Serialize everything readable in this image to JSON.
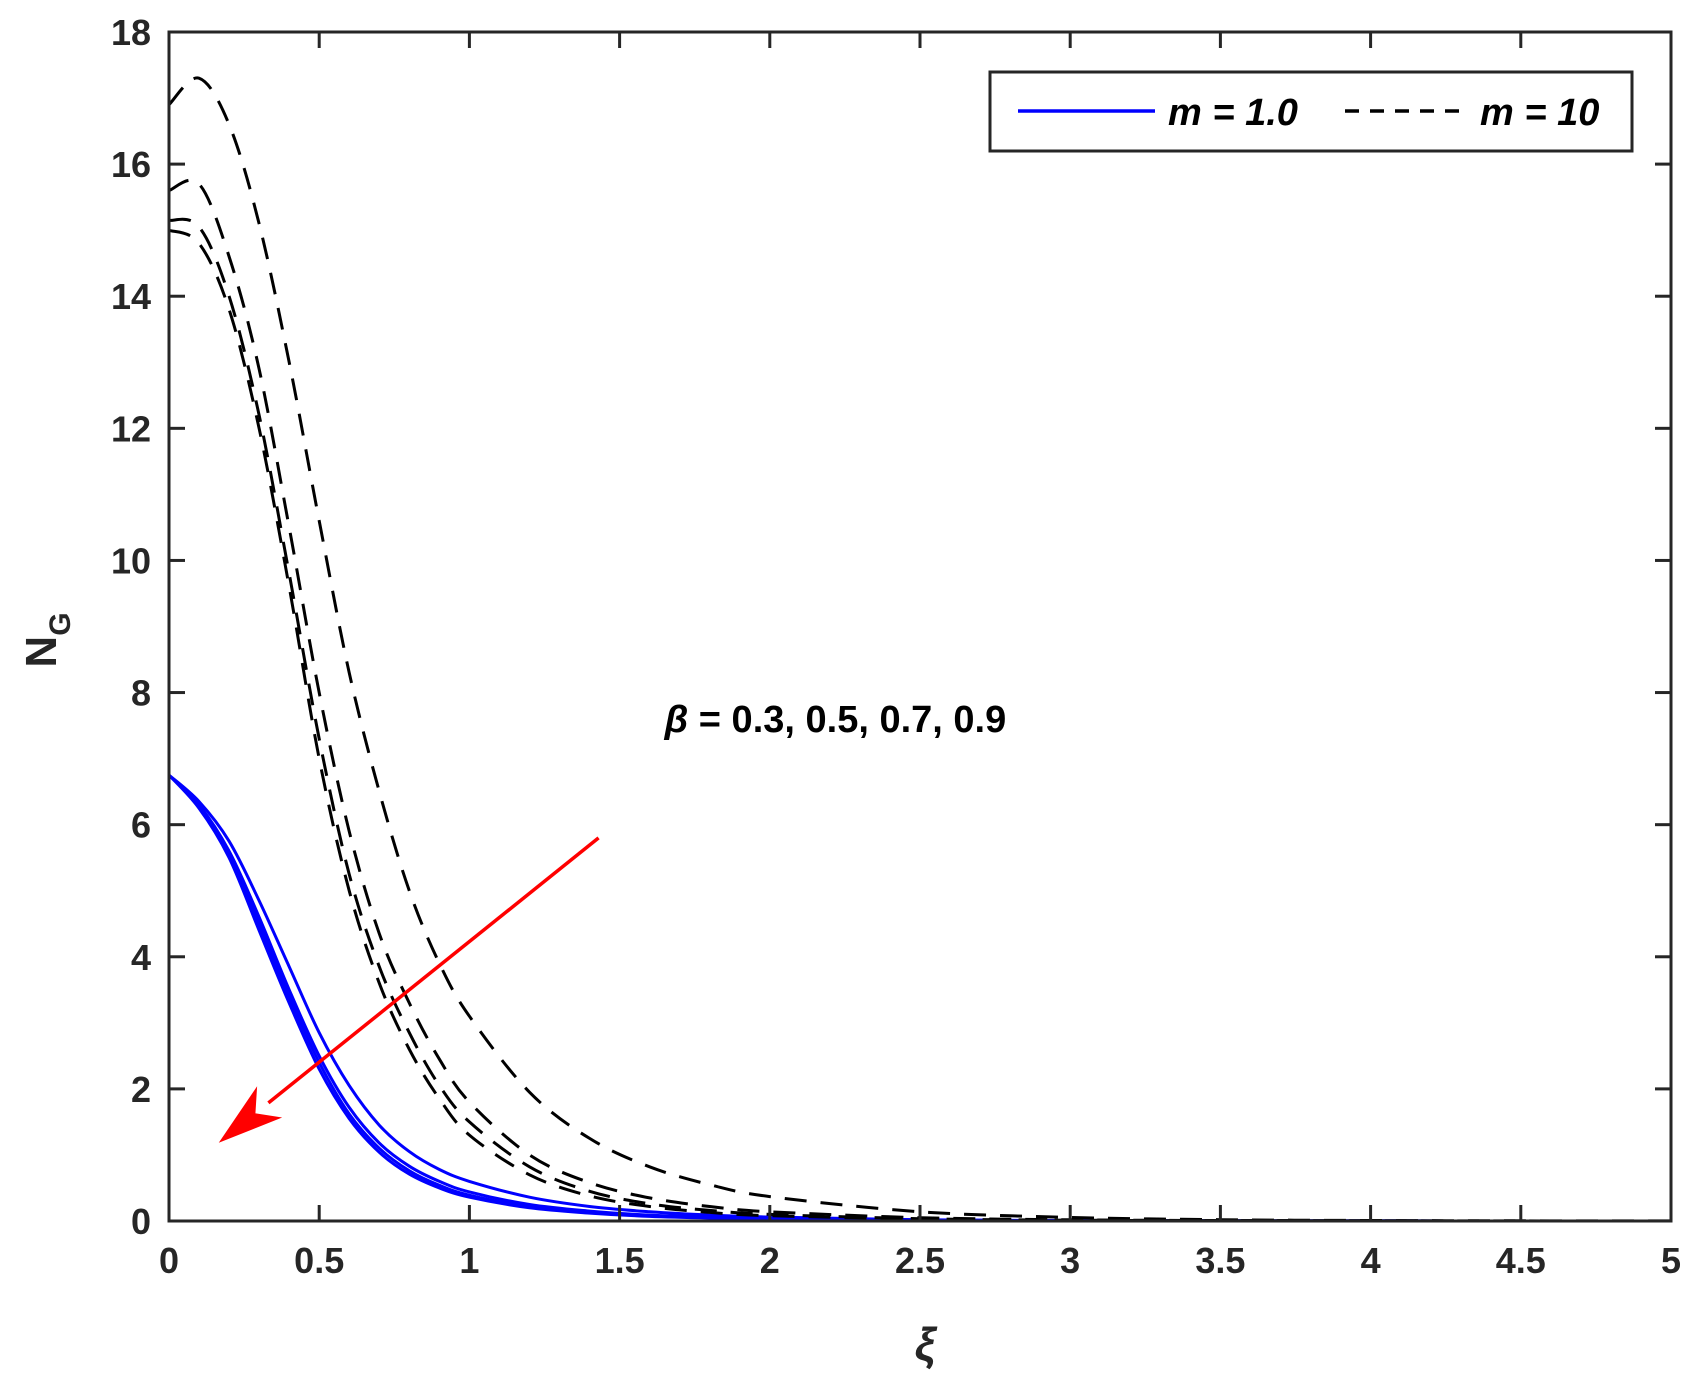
{
  "chart_data": {
    "type": "line",
    "xlabel": "ξ",
    "ylabel": {
      "main": "N",
      "sub": "G"
    },
    "xlim": [
      0,
      5
    ],
    "ylim": [
      0,
      18
    ],
    "xticks": [
      0,
      0.5,
      1,
      1.5,
      2,
      2.5,
      3,
      3.5,
      4,
      4.5,
      5
    ],
    "xtick_labels": [
      "0",
      "0.5",
      "1",
      "1.5",
      "2",
      "2.5",
      "3",
      "3.5",
      "4",
      "4.5",
      "5"
    ],
    "yticks": [
      0,
      2,
      4,
      6,
      8,
      10,
      12,
      14,
      16,
      18
    ],
    "ytick_labels": [
      "0",
      "2",
      "4",
      "6",
      "8",
      "10",
      "12",
      "14",
      "16",
      "18"
    ],
    "grid": false,
    "legend": {
      "placement": "top-right",
      "entries": [
        {
          "label": "m = 1.0",
          "style": "solid",
          "color": "#0000ff"
        },
        {
          "label": "m = 10",
          "style": "dashed",
          "color": "#000000"
        }
      ]
    },
    "annotation": {
      "symbol": "β",
      "text": " = 0.3, 0.5, 0.7, 0.9",
      "x": 1.65,
      "y": 7.4
    },
    "arrow": {
      "from": [
        1.43,
        5.8
      ],
      "to": [
        0.17,
        1.2
      ],
      "color": "#ff0000"
    },
    "x": [
      0,
      0.1,
      0.2,
      0.3,
      0.4,
      0.5,
      0.6,
      0.7,
      0.8,
      0.9,
      1.0,
      1.2,
      1.4,
      1.6,
      1.8,
      2.0,
      2.5,
      3.0,
      3.5,
      4.0,
      4.5,
      5.0
    ],
    "series": [
      {
        "group": "m = 1.0",
        "style": "solid",
        "color": "#0000ff",
        "values": [
          6.75,
          6.3,
          5.6,
          4.6,
          3.5,
          2.5,
          1.72,
          1.18,
          0.83,
          0.6,
          0.44,
          0.25,
          0.15,
          0.09,
          0.06,
          0.04,
          0.015,
          0.005,
          0.002,
          0.001,
          0,
          0
        ]
      },
      {
        "group": "m = 1.0",
        "style": "solid",
        "color": "#0000ff",
        "values": [
          6.75,
          6.3,
          5.55,
          4.5,
          3.4,
          2.4,
          1.62,
          1.1,
          0.76,
          0.54,
          0.39,
          0.22,
          0.13,
          0.08,
          0.05,
          0.035,
          0.012,
          0.004,
          0.002,
          0.001,
          0,
          0
        ]
      },
      {
        "group": "m = 1.0",
        "style": "solid",
        "color": "#0000ff",
        "values": [
          6.75,
          6.25,
          5.5,
          4.4,
          3.3,
          2.3,
          1.55,
          1.04,
          0.71,
          0.5,
          0.36,
          0.2,
          0.12,
          0.07,
          0.045,
          0.03,
          0.01,
          0.004,
          0.001,
          0,
          0,
          0
        ]
      },
      {
        "group": "m = 1.0",
        "style": "solid",
        "color": "#0000ff",
        "values": [
          6.75,
          6.35,
          5.75,
          4.85,
          3.85,
          2.85,
          2.05,
          1.45,
          1.05,
          0.78,
          0.6,
          0.36,
          0.22,
          0.14,
          0.09,
          0.06,
          0.02,
          0.007,
          0.003,
          0.001,
          0,
          0
        ]
      },
      {
        "group": "m = 10",
        "style": "dashed",
        "color": "#000000",
        "values": [
          15.0,
          14.8,
          13.8,
          12.0,
          9.6,
          7.0,
          5.0,
          3.6,
          2.6,
          1.85,
          1.3,
          0.7,
          0.38,
          0.22,
          0.13,
          0.08,
          0.03,
          0.01,
          0.004,
          0.002,
          0,
          0
        ]
      },
      {
        "group": "m = 10",
        "style": "dashed",
        "color": "#000000",
        "values": [
          15.15,
          15.05,
          14.0,
          12.2,
          9.8,
          7.3,
          5.25,
          3.85,
          2.85,
          2.05,
          1.5,
          0.82,
          0.45,
          0.26,
          0.16,
          0.1,
          0.035,
          0.012,
          0.005,
          0.002,
          0,
          0
        ]
      },
      {
        "group": "m = 10",
        "style": "dashed",
        "color": "#000000",
        "values": [
          15.6,
          15.7,
          14.6,
          12.9,
          10.5,
          8.0,
          5.9,
          4.35,
          3.3,
          2.45,
          1.8,
          1.0,
          0.58,
          0.35,
          0.22,
          0.14,
          0.05,
          0.018,
          0.007,
          0.003,
          0.001,
          0
        ]
      },
      {
        "group": "m = 10",
        "style": "dashed",
        "color": "#000000",
        "values": [
          16.9,
          17.3,
          16.6,
          15.1,
          13.0,
          10.6,
          8.3,
          6.5,
          5.0,
          3.9,
          3.1,
          1.95,
          1.25,
          0.82,
          0.55,
          0.37,
          0.14,
          0.055,
          0.02,
          0.008,
          0.003,
          0.001
        ]
      }
    ]
  }
}
